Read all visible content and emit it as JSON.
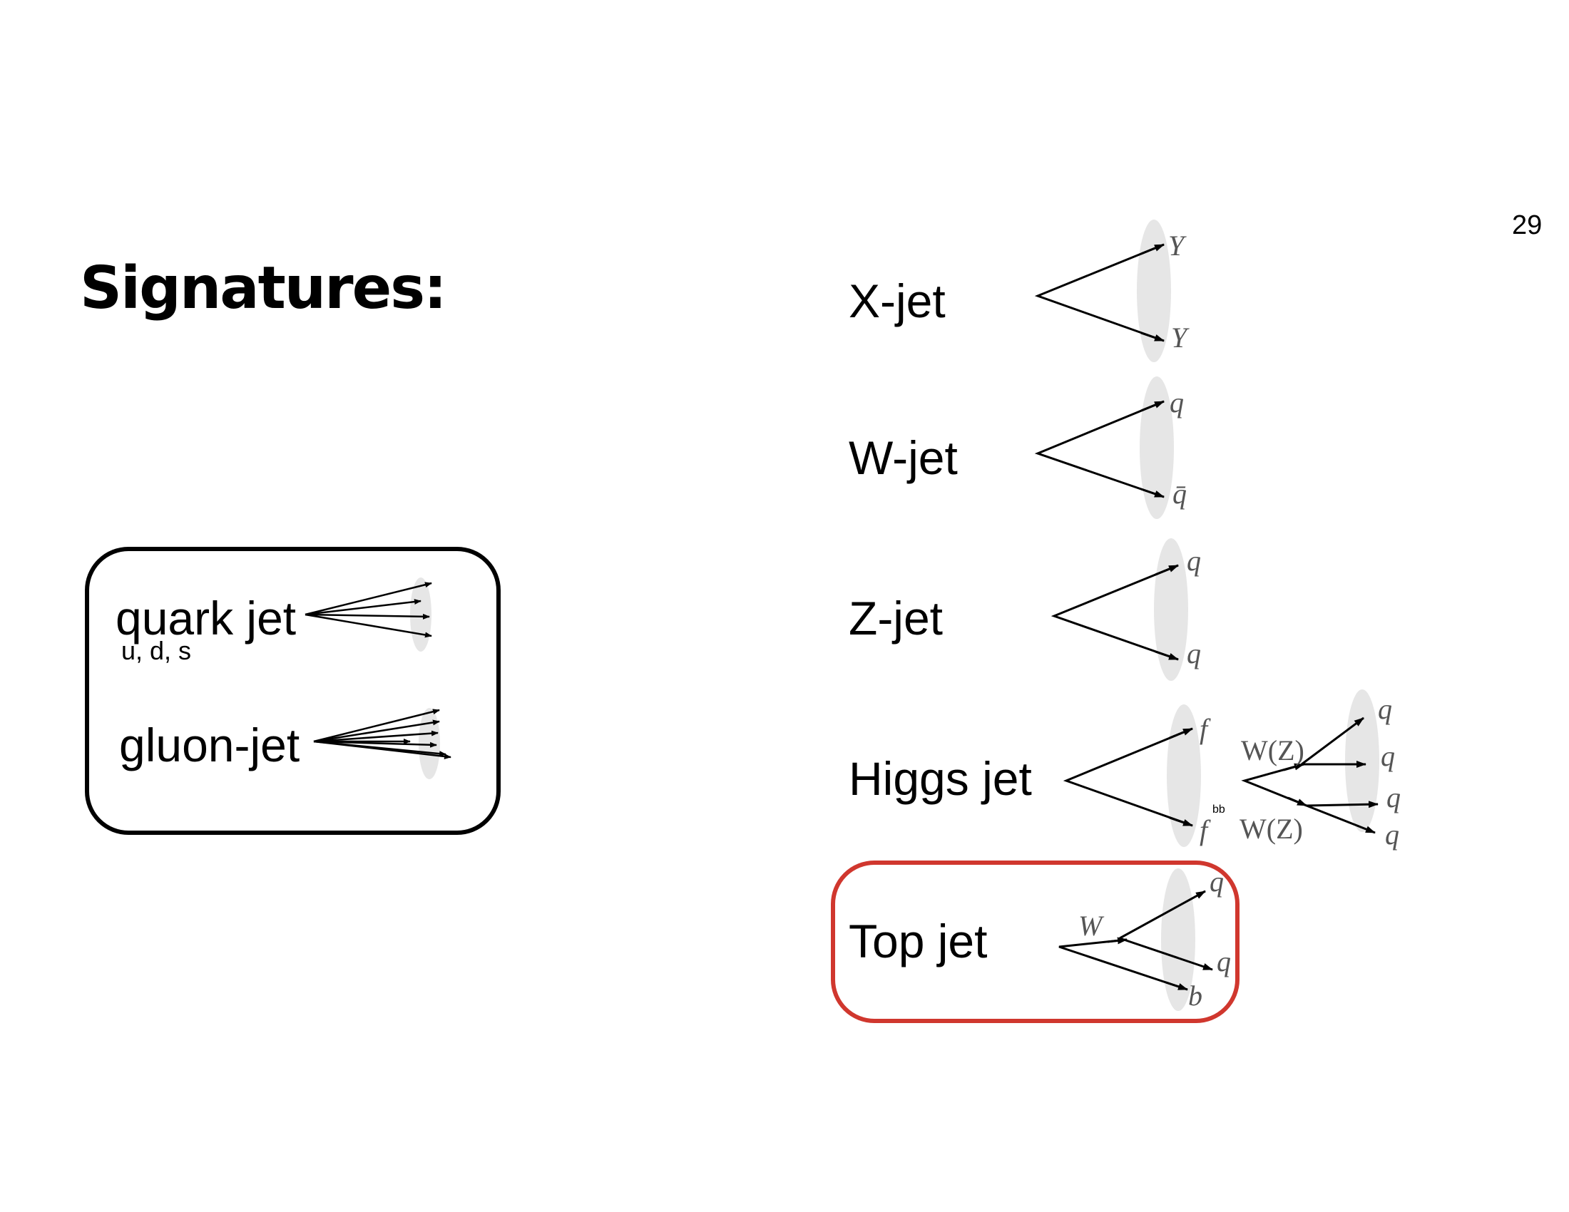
{
  "slide": {
    "title": "Signatures:",
    "page_number": "29"
  },
  "light_jets": {
    "quark": {
      "label": "quark jet",
      "flavors": "u, d, s"
    },
    "gluon": {
      "label": "gluon-jet"
    }
  },
  "heavy_jets": {
    "x_jet": {
      "label": "X-jet",
      "top": "Y",
      "bottom": "Y"
    },
    "w_jet": {
      "label": "W-jet",
      "top": "q",
      "bottom": "q̄"
    },
    "z_jet": {
      "label": "Z-jet",
      "top": "q",
      "bottom": "q"
    },
    "higgs_jet": {
      "label": "Higgs jet",
      "top": "f",
      "bottom": "f",
      "bb": "bb",
      "w_upper": "W(Z)",
      "w_lower": "W(Z)",
      "q1": "q",
      "q2": "q",
      "q3": "q",
      "q4": "q"
    },
    "top_jet": {
      "label": "Top jet",
      "w": "W",
      "q1": "q",
      "q2": "q",
      "b": "b"
    }
  },
  "colors": {
    "highlight": "#d0372e",
    "cone": "#e6e6e6",
    "particle_label": "#555555"
  }
}
